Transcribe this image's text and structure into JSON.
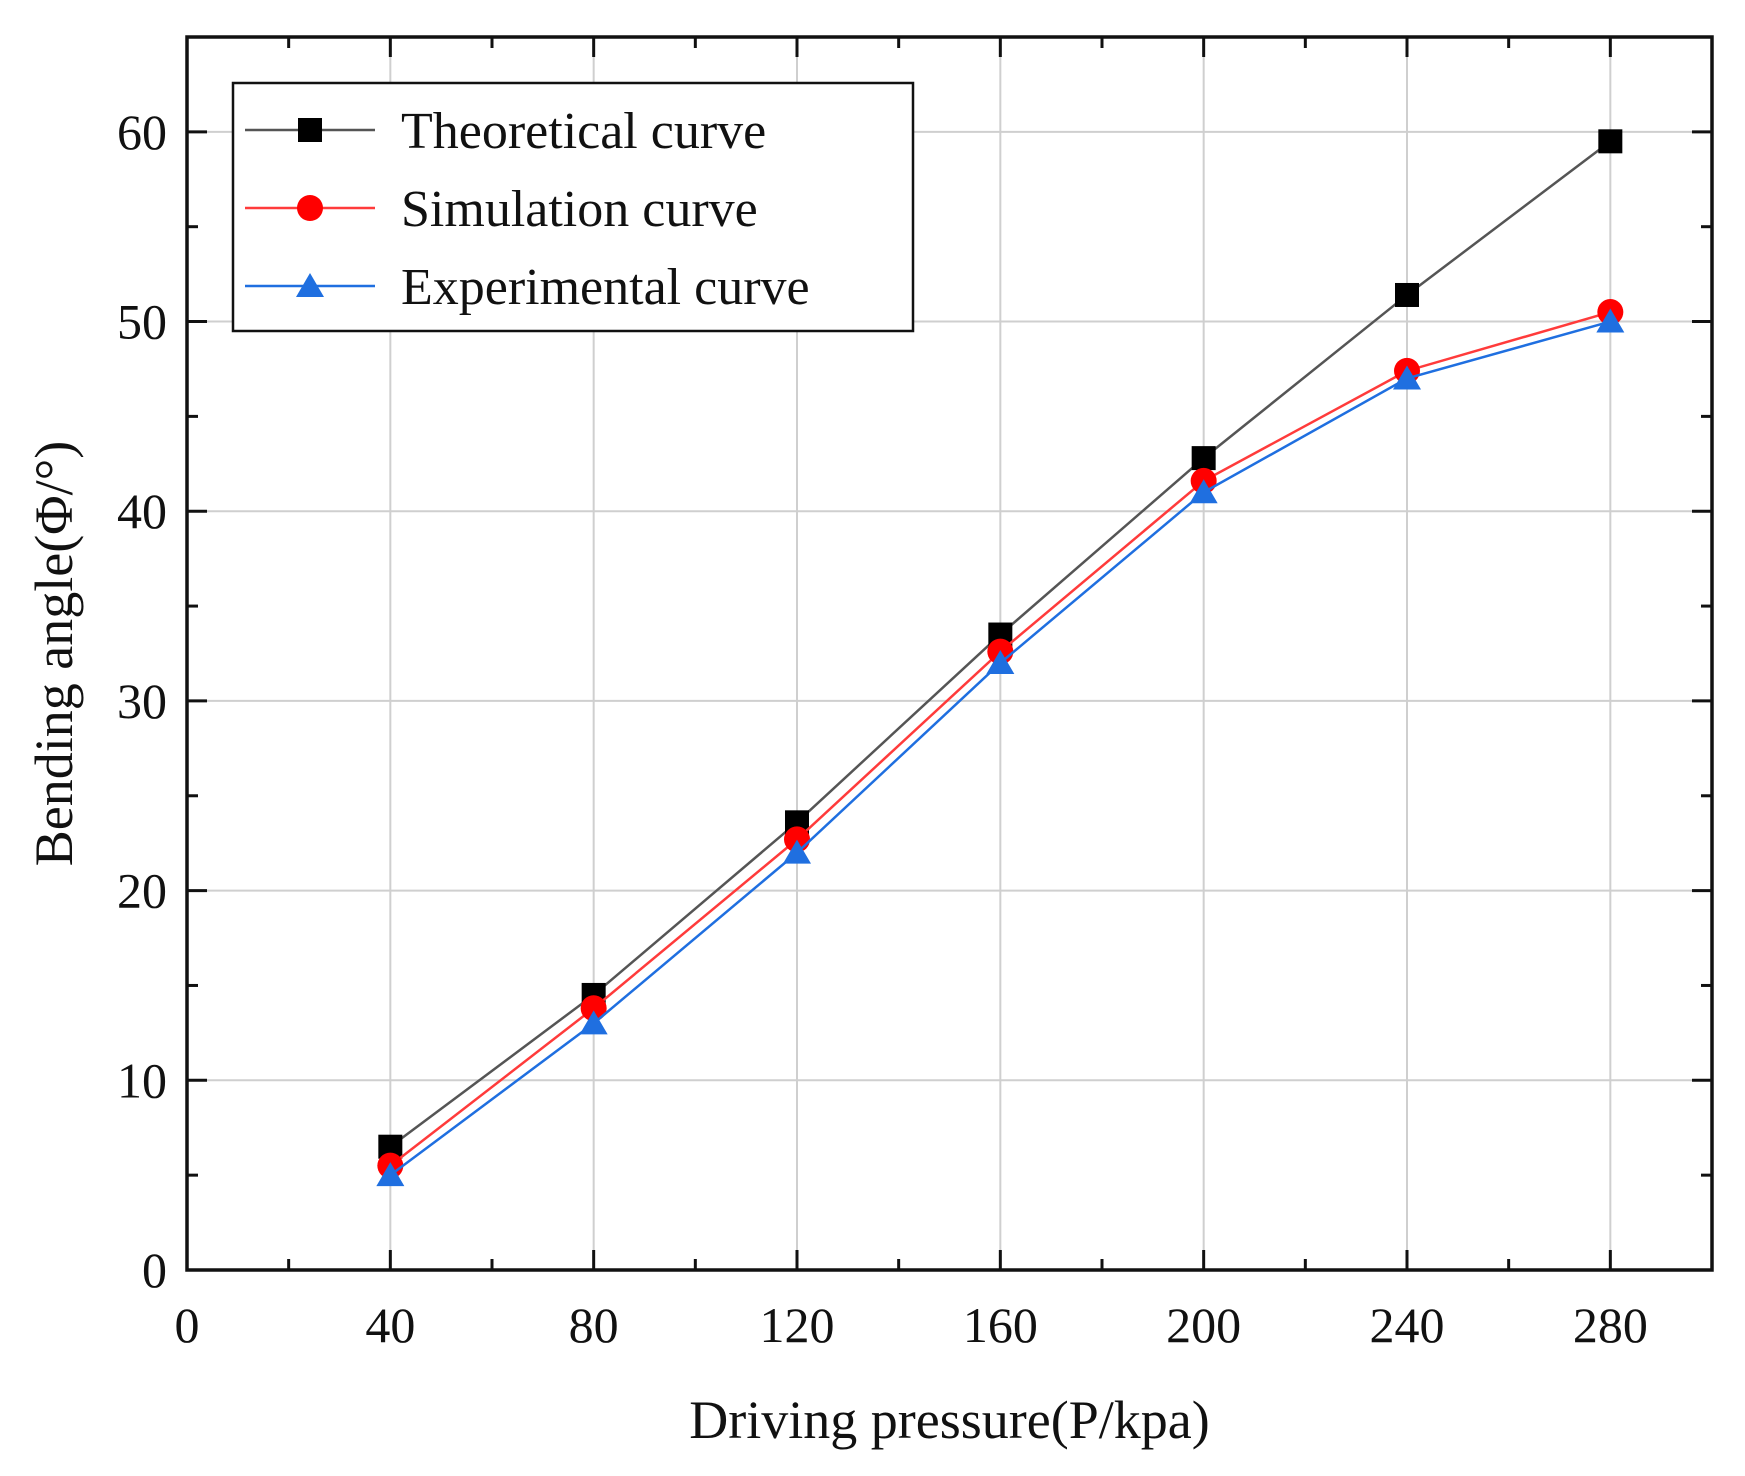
{
  "chart_data": {
    "type": "line",
    "title": "",
    "xlabel": "Driving pressure(P/kpa)",
    "ylabel": "Bending angle(Φ/°)",
    "xlim": [
      0,
      300
    ],
    "ylim": [
      0,
      65
    ],
    "x_ticks": [
      0,
      40,
      80,
      120,
      160,
      200,
      240,
      280
    ],
    "x_tick_labels": [
      "0",
      "40",
      "80",
      "120",
      "160",
      "200",
      "240",
      "280"
    ],
    "y_ticks": [
      0,
      10,
      20,
      30,
      40,
      50,
      60
    ],
    "y_tick_labels": [
      "0",
      "10",
      "20",
      "30",
      "40",
      "50",
      "60"
    ],
    "grid": true,
    "legend_position": "top-left",
    "x": [
      40,
      80,
      120,
      160,
      200,
      240,
      280
    ],
    "series": [
      {
        "name": "Theoretical curve",
        "marker": "square",
        "line_color": "#555555",
        "marker_color": "#000000",
        "values": [
          6.5,
          14.5,
          23.6,
          33.5,
          42.8,
          51.4,
          59.5
        ]
      },
      {
        "name": "Simulation curve",
        "marker": "circle",
        "line_color": "#ff3b3b",
        "marker_color": "#ff0000",
        "values": [
          5.5,
          13.8,
          22.7,
          32.6,
          41.6,
          47.4,
          50.5
        ]
      },
      {
        "name": "Experimental curve",
        "marker": "triangle",
        "line_color": "#1f6fe0",
        "marker_color": "#1f6fe0",
        "values": [
          5.0,
          13.0,
          22.0,
          32.0,
          41.0,
          47.0,
          50.0
        ]
      }
    ]
  }
}
